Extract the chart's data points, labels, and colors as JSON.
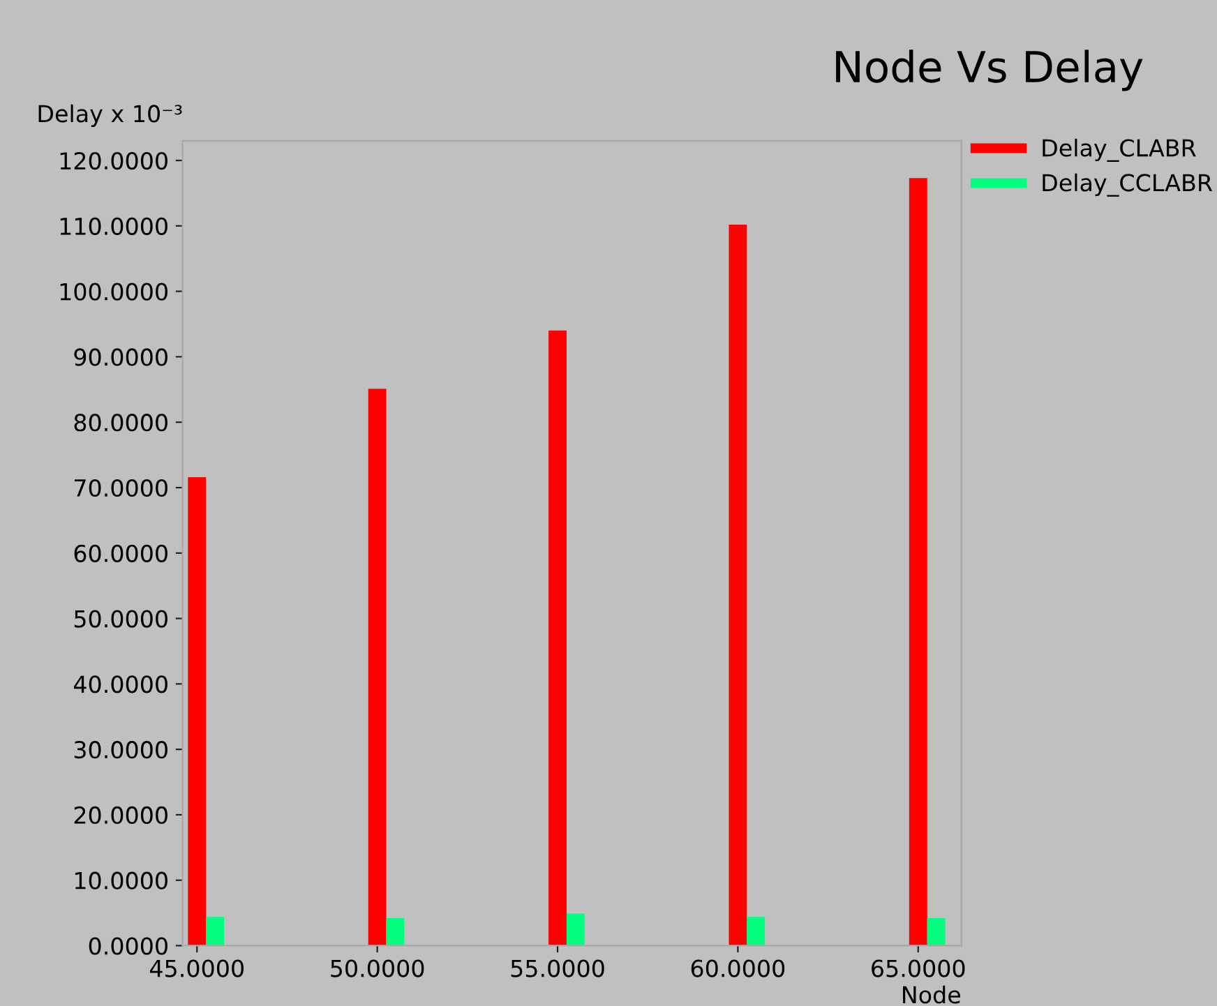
{
  "chart_data": {
    "type": "bar",
    "title": "Node Vs Delay",
    "xlabel": "Node",
    "ylabel": "Delay x 10⁻³",
    "x": [
      45,
      50,
      55,
      60,
      65
    ],
    "series": [
      {
        "name": "Delay_CLABR",
        "color": "#ff0000",
        "values": [
          71.6,
          85.1,
          94.0,
          110.2,
          117.3
        ]
      },
      {
        "name": "Delay_CCLABR",
        "color": "#00ff7f",
        "values": [
          4.4,
          4.2,
          4.9,
          4.4,
          4.2
        ]
      }
    ],
    "xlim": [
      44.6,
      66.2
    ],
    "ylim": [
      0,
      123
    ],
    "xticks": [
      {
        "value": 45,
        "label": "45.0000"
      },
      {
        "value": 50,
        "label": "50.0000"
      },
      {
        "value": 55,
        "label": "55.0000"
      },
      {
        "value": 60,
        "label": "60.0000"
      },
      {
        "value": 65,
        "label": "65.0000"
      }
    ],
    "yticks": [
      {
        "value": 0,
        "label": "0.0000"
      },
      {
        "value": 10,
        "label": "10.0000"
      },
      {
        "value": 20,
        "label": "20.0000"
      },
      {
        "value": 30,
        "label": "30.0000"
      },
      {
        "value": 40,
        "label": "40.0000"
      },
      {
        "value": 50,
        "label": "50.0000"
      },
      {
        "value": 60,
        "label": "60.0000"
      },
      {
        "value": 70,
        "label": "70.0000"
      },
      {
        "value": 80,
        "label": "80.0000"
      },
      {
        "value": 90,
        "label": "90.0000"
      },
      {
        "value": 100,
        "label": "100.0000"
      },
      {
        "value": 110,
        "label": "110.0000"
      },
      {
        "value": 120,
        "label": "120.0000"
      }
    ],
    "grid": false,
    "legend": "top right"
  }
}
